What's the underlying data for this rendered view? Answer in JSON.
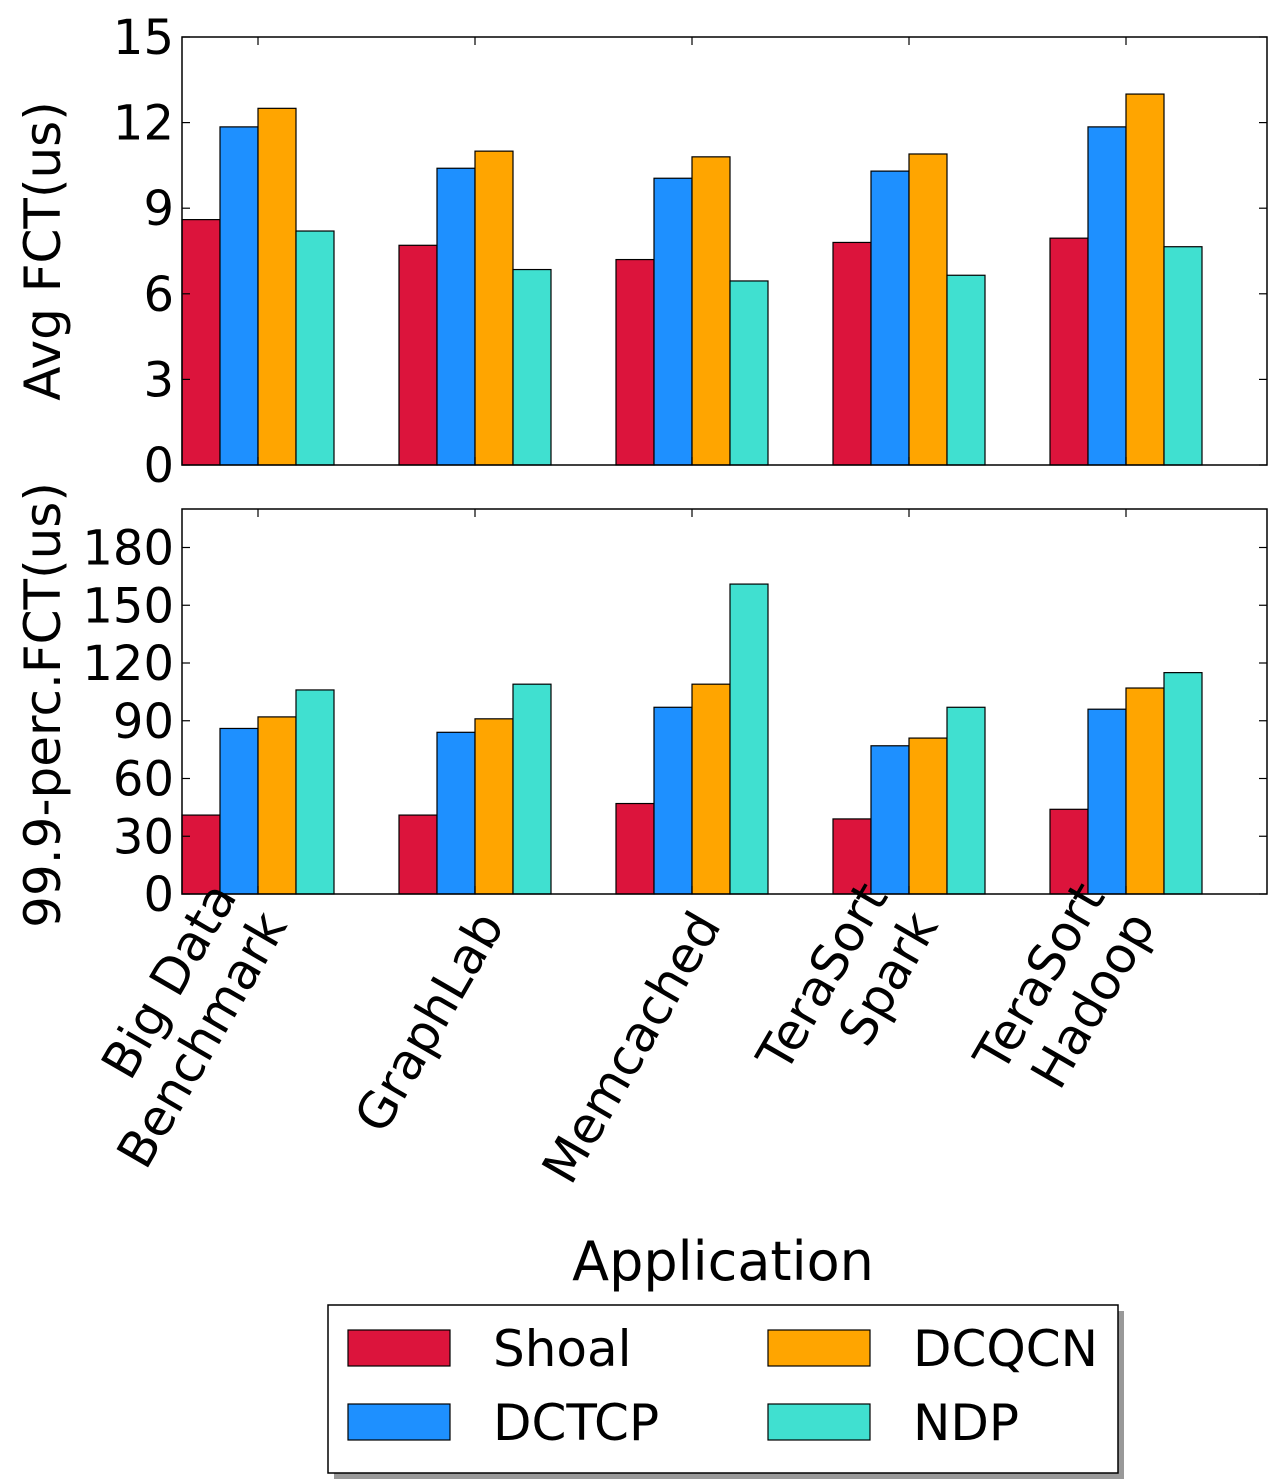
{
  "colors": {
    "Shoal": "#dc143c",
    "DCTCP": "#1e90ff",
    "DCQCN": "#ffa500",
    "NDP": "#40e0d0"
  },
  "chart_data": [
    {
      "type": "bar",
      "ylabel": "Avg FCT(us)",
      "xlabel": "",
      "ylim": [
        0,
        15
      ],
      "yticks": [
        0,
        3,
        6,
        9,
        12,
        15
      ],
      "categories": [
        "Big Data\nBenchmark",
        "GraphLab",
        "Memcached",
        "TeraSort\nSpark",
        "TeraSort\nHadoop"
      ],
      "series": [
        {
          "name": "Shoal",
          "values": [
            8.6,
            7.7,
            7.2,
            7.8,
            7.95
          ]
        },
        {
          "name": "DCTCP",
          "values": [
            11.85,
            10.4,
            10.05,
            10.3,
            11.85
          ]
        },
        {
          "name": "DCQCN",
          "values": [
            12.5,
            11.0,
            10.8,
            10.9,
            13.0
          ]
        },
        {
          "name": "NDP",
          "values": [
            8.2,
            6.85,
            6.45,
            6.65,
            7.65
          ]
        }
      ]
    },
    {
      "type": "bar",
      "ylabel": "99.9-perc.FCT(us)",
      "xlabel": "Application",
      "ylim": [
        0,
        200
      ],
      "yticks": [
        0,
        30,
        60,
        90,
        120,
        150,
        180
      ],
      "categories": [
        "Big Data\nBenchmark",
        "GraphLab",
        "Memcached",
        "TeraSort\nSpark",
        "TeraSort\nHadoop"
      ],
      "series": [
        {
          "name": "Shoal",
          "values": [
            41,
            41,
            47,
            39,
            44
          ]
        },
        {
          "name": "DCTCP",
          "values": [
            86,
            84,
            97,
            77,
            96
          ]
        },
        {
          "name": "DCQCN",
          "values": [
            92,
            91,
            109,
            81,
            107
          ]
        },
        {
          "name": "NDP",
          "values": [
            106,
            109,
            161,
            97,
            115
          ]
        }
      ]
    }
  ],
  "legend": {
    "position": "bottom-center",
    "items": [
      "Shoal",
      "DCQCN",
      "DCTCP",
      "NDP"
    ]
  }
}
